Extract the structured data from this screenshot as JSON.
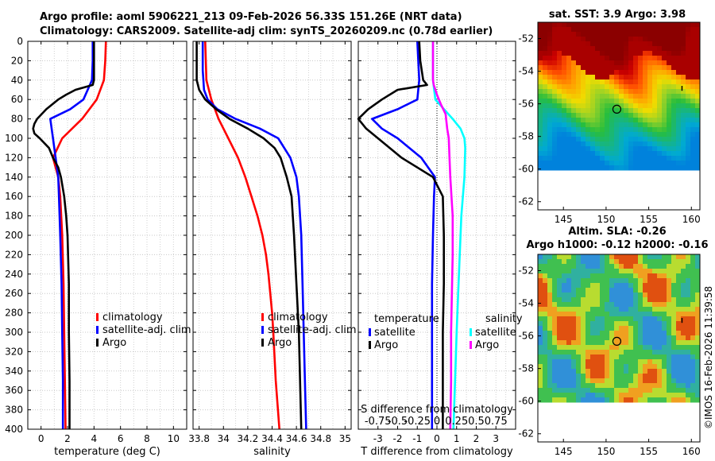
{
  "header": {
    "title_line1": "Argo profile: aoml 5906221_213 09-Feb-2026 56.33S 151.26E (NRT data)",
    "title_line2": "Climatology: CARS2009. Satellite-adj clim: synTS_20260209.nc (0.78d earlier)"
  },
  "map_sst": {
    "title": "sat. SST: 3.9 Argo: 3.98",
    "yticks": [
      "-52",
      "-54",
      "-56",
      "-58",
      "-60",
      "-62"
    ],
    "xticks": [
      "145",
      "150",
      "155",
      "160"
    ]
  },
  "map_sla": {
    "title_line1": "Altim. SLA: -0.26",
    "title_line2": "Argo h1000: -0.12 h2000: -0.16",
    "yticks": [
      "-52",
      "-54",
      "-56",
      "-58",
      "-60",
      "-62"
    ],
    "xticks": [
      "145",
      "150",
      "155",
      "160"
    ]
  },
  "watermark": "©IMOS 16-Feb-2026 11:39:58",
  "colors": {
    "climatology": "#ff0000",
    "satellite": "#0000ff",
    "argo": "#000000",
    "s_satellite": "#00ffff",
    "s_argo": "#ff00ff"
  },
  "chart_data": [
    {
      "type": "line",
      "id": "temperature",
      "xlabel": "temperature (deg C)",
      "ylabel": "",
      "xlim": [
        -1,
        11
      ],
      "ylim": [
        400,
        0
      ],
      "xticks": [
        "0",
        "2",
        "4",
        "6",
        "8",
        "10"
      ],
      "yticks": [
        "0",
        "20",
        "40",
        "60",
        "80",
        "100",
        "120",
        "140",
        "160",
        "180",
        "200",
        "220",
        "240",
        "260",
        "280",
        "300",
        "320",
        "340",
        "360",
        "380",
        "400"
      ],
      "legend": [
        "climatology",
        "satellite-adj. clim",
        "Argo"
      ],
      "series": [
        {
          "name": "climatology",
          "depth": [
            0,
            20,
            40,
            60,
            80,
            100,
            120,
            140,
            160,
            200,
            250,
            300,
            350,
            400
          ],
          "values": [
            4.9,
            4.85,
            4.75,
            4.2,
            3.1,
            1.6,
            0.9,
            1.3,
            1.45,
            1.6,
            1.7,
            1.75,
            1.8,
            1.85
          ]
        },
        {
          "name": "satellite-adj. clim",
          "depth": [
            0,
            20,
            40,
            60,
            70,
            80,
            100,
            120,
            140,
            160,
            200,
            250,
            300,
            350,
            400
          ],
          "values": [
            3.9,
            3.9,
            3.85,
            3.2,
            2.2,
            0.7,
            0.9,
            1.1,
            1.3,
            1.35,
            1.45,
            1.55,
            1.6,
            1.65,
            1.65
          ]
        },
        {
          "name": "Argo",
          "depth": [
            0,
            20,
            40,
            45,
            50,
            55,
            60,
            70,
            80,
            85,
            90,
            95,
            100,
            110,
            120,
            130,
            140,
            160,
            180,
            200,
            250,
            300,
            350,
            400
          ],
          "values": [
            4.0,
            4.0,
            4.0,
            3.9,
            2.6,
            1.9,
            1.3,
            0.4,
            -0.3,
            -0.5,
            -0.6,
            -0.5,
            -0.1,
            0.6,
            0.9,
            1.3,
            1.5,
            1.75,
            1.9,
            2.0,
            2.1,
            2.1,
            2.15,
            2.15
          ]
        }
      ]
    },
    {
      "type": "line",
      "id": "salinity",
      "xlabel": "salinity",
      "xlim": [
        33.75,
        35.05
      ],
      "ylim": [
        400,
        0
      ],
      "xticks": [
        "33.8",
        "34",
        "34.2",
        "34.4",
        "34.6",
        "34.8",
        "35"
      ],
      "legend": [
        "climatology",
        "satellite-adj. clim",
        "Argo"
      ],
      "series": [
        {
          "name": "climatology",
          "depth": [
            0,
            40,
            60,
            80,
            100,
            120,
            140,
            160,
            180,
            200,
            220,
            240,
            280,
            300,
            350,
            400
          ],
          "values": [
            33.85,
            33.86,
            33.9,
            33.96,
            34.04,
            34.12,
            34.18,
            34.23,
            34.28,
            34.32,
            34.35,
            34.37,
            34.4,
            34.41,
            34.43,
            34.46
          ]
        },
        {
          "name": "satellite-adj. clim",
          "depth": [
            0,
            30,
            50,
            60,
            70,
            80,
            90,
            100,
            120,
            140,
            160,
            200,
            250,
            300,
            350,
            400
          ],
          "values": [
            33.83,
            33.83,
            33.84,
            33.87,
            33.95,
            34.1,
            34.3,
            34.45,
            34.55,
            34.6,
            34.62,
            34.64,
            34.65,
            34.66,
            34.67,
            34.68
          ]
        },
        {
          "name": "Argo",
          "depth": [
            0,
            40,
            50,
            60,
            70,
            80,
            90,
            100,
            110,
            120,
            140,
            160,
            200,
            250,
            300,
            350,
            400
          ],
          "values": [
            33.78,
            33.78,
            33.8,
            33.85,
            33.94,
            34.05,
            34.2,
            34.33,
            34.42,
            34.47,
            34.52,
            34.56,
            34.58,
            34.6,
            34.62,
            34.63,
            34.64
          ]
        }
      ]
    },
    {
      "type": "line",
      "id": "difference",
      "xlabel": "T difference from climatology",
      "xlabel_s": "S difference from climatology",
      "xlim": [
        -4,
        4
      ],
      "ylim": [
        400,
        0
      ],
      "xticks": [
        "-3",
        "-2",
        "-1",
        "0",
        "1",
        "2",
        "3"
      ],
      "sticks": [
        "-0.75",
        "-0.5",
        "-0.25",
        "0",
        "0.25",
        "0.5",
        "0.75"
      ],
      "legend_temperature_title": "temperature",
      "legend_salinity_title": "salinity",
      "legend": [
        "satellite",
        "Argo",
        "satellite",
        "Argo"
      ],
      "series": [
        {
          "name": "temperature satellite",
          "depth": [
            0,
            40,
            60,
            70,
            80,
            90,
            100,
            120,
            140,
            160,
            200,
            250,
            300,
            350,
            400
          ],
          "values": [
            -1.0,
            -0.9,
            -1.0,
            -2.0,
            -3.3,
            -2.8,
            -2.0,
            -0.8,
            -0.1,
            -0.15,
            -0.2,
            -0.25,
            -0.25,
            -0.25,
            -0.25
          ]
        },
        {
          "name": "temperature Argo",
          "depth": [
            0,
            20,
            40,
            45,
            50,
            60,
            70,
            80,
            90,
            100,
            120,
            140,
            160,
            200,
            250,
            300,
            350,
            400
          ],
          "values": [
            -0.9,
            -0.85,
            -0.7,
            -0.5,
            -2.0,
            -2.8,
            -3.5,
            -4.0,
            -3.6,
            -3.0,
            -1.8,
            -0.2,
            0.3,
            0.35,
            0.35,
            0.3,
            0.3,
            0.3
          ]
        },
        {
          "name": "salinity satellite",
          "depth": [
            0,
            40,
            60,
            80,
            90,
            100,
            110,
            140,
            180,
            220,
            260,
            300,
            350,
            400
          ],
          "values": [
            -0.05,
            -0.05,
            -0.02,
            0.2,
            0.3,
            0.35,
            0.36,
            0.35,
            0.31,
            0.29,
            0.27,
            0.25,
            0.23,
            0.21
          ]
        },
        {
          "name": "salinity Argo",
          "depth": [
            0,
            40,
            45,
            55,
            65,
            75,
            90,
            100,
            120,
            140,
            180,
            220,
            260,
            300,
            350,
            400
          ],
          "values": [
            -0.05,
            -0.05,
            -0.04,
            0.0,
            0.05,
            0.11,
            0.13,
            0.15,
            0.16,
            0.17,
            0.2,
            0.2,
            0.19,
            0.18,
            0.18,
            0.17
          ]
        }
      ]
    }
  ]
}
